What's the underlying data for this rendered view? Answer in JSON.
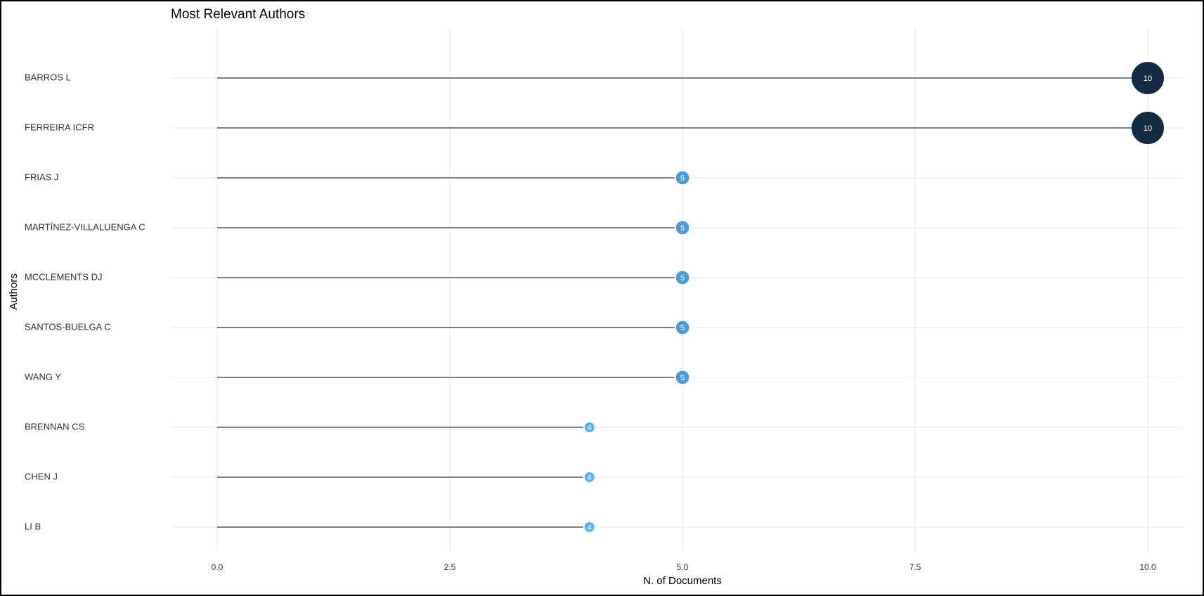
{
  "chart_data": {
    "type": "lollipop",
    "title": "Most Relevant Authors",
    "x_label": "N. of Documents",
    "y_label": "Authors",
    "categories": [
      "BARROS L",
      "FERREIRA ICFR",
      "FRIAS J",
      "MARTÍNEZ-VILLALUENGA C",
      "MCCLEMENTS DJ",
      "SANTOS-BUELGA C",
      "WANG Y",
      "BRENNAN CS",
      "CHEN J",
      "LI B"
    ],
    "values": [
      10,
      10,
      5,
      5,
      5,
      5,
      5,
      4,
      4,
      4
    ],
    "xlim": [
      0,
      10
    ],
    "xticks": [
      {
        "value": 0,
        "label": "0.0"
      },
      2.5,
      {
        "value": 5,
        "label": "5.0"
      },
      7.5,
      {
        "value": 10,
        "label": "10.0"
      }
    ],
    "grid": true,
    "stem_color": "#555555",
    "color_low": "#56b1f7",
    "color_high": "#132b43"
  }
}
